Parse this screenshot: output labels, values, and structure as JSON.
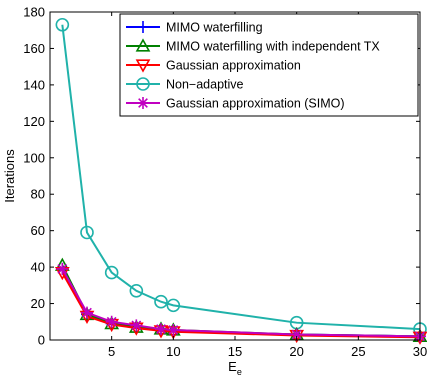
{
  "chart_data": {
    "type": "line",
    "xlabel": "E",
    "xlabel_subscript": "e",
    "ylabel": "Iterations",
    "xlim": [
      0,
      30
    ],
    "ylim": [
      0,
      180
    ],
    "xticks": [
      5,
      10,
      15,
      20,
      25,
      30
    ],
    "yticks": [
      0,
      20,
      40,
      60,
      80,
      100,
      120,
      140,
      160,
      180
    ],
    "grid": false,
    "legend_position": "top-right",
    "series": [
      {
        "name": "MIMO waterfilling",
        "color": "#0000ff",
        "marker": "plus",
        "x": [
          1,
          3,
          5,
          7,
          9,
          10,
          20,
          30
        ],
        "y": [
          39,
          14,
          9,
          7,
          5.5,
          5,
          3,
          2
        ]
      },
      {
        "name": "MIMO waterfilling with independent TX",
        "color": "#008000",
        "marker": "triangle-up",
        "x": [
          1,
          3,
          5,
          7,
          9,
          10,
          20,
          30
        ],
        "y": [
          41,
          14,
          9,
          7,
          6,
          5.5,
          3,
          2
        ]
      },
      {
        "name": "Gaussian approximation",
        "color": "#ff0000",
        "marker": "triangle-down",
        "x": [
          1,
          3,
          5,
          7,
          9,
          10,
          20,
          30
        ],
        "y": [
          37,
          13,
          8.5,
          6.5,
          5,
          4.5,
          2.5,
          1.5
        ]
      },
      {
        "name": "Non−adaptive",
        "color": "#20b2aa",
        "marker": "circle",
        "x": [
          1,
          3,
          5,
          7,
          9,
          10,
          20,
          30
        ],
        "y": [
          173,
          59,
          37,
          27,
          21,
          19,
          9.5,
          6
        ]
      },
      {
        "name": "Gaussian approximation (SIMO)",
        "color": "#c000c0",
        "marker": "asterisk",
        "x": [
          1,
          3,
          5,
          7,
          9,
          10,
          20,
          30
        ],
        "y": [
          39,
          15,
          10,
          8,
          6,
          5.5,
          3,
          2
        ]
      }
    ]
  }
}
